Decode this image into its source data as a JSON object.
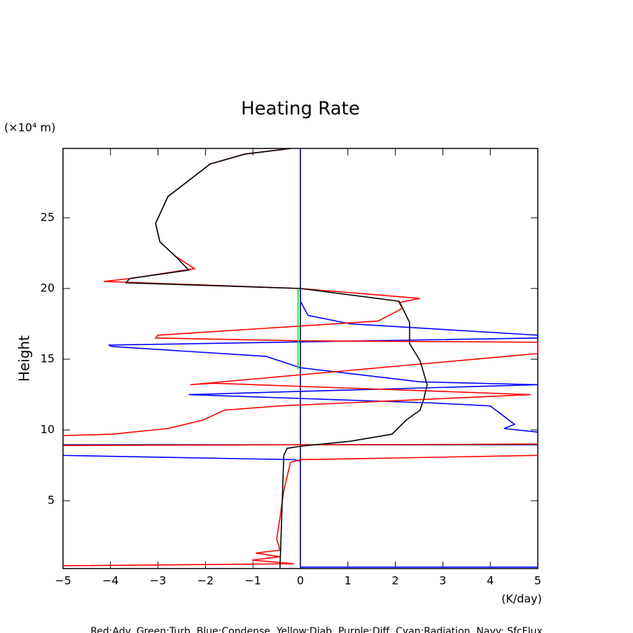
{
  "chart_data": {
    "type": "line",
    "title": "Heating Rate",
    "y_unit": "(×10⁴ m)",
    "y_label": "Height",
    "x_unit": "(K/day)",
    "footer": "Red:Adv.  Green:Turb.  Blue:Condense.  Yellow:Diab.  Purple:Diff.  Cyan:Radiation.  Navy: SfcFlux",
    "xlim": [
      -5,
      5
    ],
    "ylim": [
      0.2,
      29.9
    ],
    "xticks": [
      {
        "value": -5,
        "label": "−5"
      },
      {
        "value": -4,
        "label": "−4"
      },
      {
        "value": -3,
        "label": "−3"
      },
      {
        "value": -2,
        "label": "−2"
      },
      {
        "value": -1,
        "label": "−1"
      },
      0,
      1,
      2,
      3,
      4,
      5
    ],
    "yticks": [
      5,
      10,
      15,
      20,
      25
    ],
    "series": [
      {
        "color": "#000080",
        "x": [
          0,
          0
        ],
        "y": [
          0.2,
          29.9
        ]
      },
      {
        "color": "#000080",
        "x": [
          -5,
          5
        ],
        "y": [
          8.95,
          8.95
        ]
      },
      {
        "color": "#0000ff",
        "x": [
          0,
          5
        ],
        "y": [
          0.3,
          0.3
        ]
      },
      {
        "color": "#0000ff",
        "x": [
          -5,
          -0.13,
          0
        ],
        "y": [
          8.2,
          7.9,
          7.8
        ]
      },
      {
        "color": "#0000ff",
        "x": [
          5,
          4.29,
          4.51,
          4,
          2.82,
          -2.35,
          5,
          2.52,
          0,
          -0.72,
          -3.97,
          -4.04,
          5,
          5,
          1.05,
          0.16,
          0,
          0
        ],
        "y": [
          9.85,
          10.1,
          10.4,
          11.7,
          11.9,
          12.5,
          13.2,
          13.4,
          14.4,
          15.2,
          15.9,
          16.0,
          16.5,
          16.7,
          17.5,
          18.1,
          19.1,
          20
        ]
      },
      {
        "color": "#ff0000",
        "x": [
          -5,
          -0.13,
          -1.02,
          -0.43,
          -0.94,
          -0.43,
          -0.5,
          -0.43,
          -0.35,
          -0.21,
          0,
          5
        ],
        "y": [
          0.4,
          0.54,
          0.8,
          1.04,
          1.3,
          1.5,
          2.3,
          3.8,
          5.7,
          7.7,
          7.9,
          8.2
        ]
      },
      {
        "color": "#ff0000",
        "x": [
          -5,
          5
        ],
        "y": [
          8.9,
          9.0
        ]
      },
      {
        "color": "#ff0000",
        "x": [
          -5,
          -3.97,
          -2.79,
          -2.05,
          -1.6,
          -0.43,
          4.85,
          -1.83,
          -2.32,
          5,
          5,
          0,
          -3.05,
          -3.0,
          1.64,
          2.15,
          2.08,
          2.52,
          0,
          -4.14,
          -3.6,
          -2.23,
          -2.64,
          -2.96,
          -3.05,
          -2.79,
          -1.9,
          -1.17,
          -0.2
        ],
        "y": [
          9.6,
          9.7,
          10.1,
          10.7,
          11.4,
          11.7,
          12.5,
          13.3,
          13.2,
          15.4,
          16.2,
          16.3,
          16.5,
          16.7,
          17.7,
          18.6,
          19.0,
          19.3,
          20,
          20.5,
          20.7,
          21.4,
          22.3,
          23.3,
          24.6,
          26.5,
          28.8,
          29.5,
          29.9
        ]
      },
      {
        "color": "#000000",
        "x": [
          -0.43,
          -0.35,
          -0.28,
          0,
          1.05,
          1.93,
          2.23,
          2.52,
          2.6,
          2.67,
          2.52,
          2.3,
          2.3,
          2.08,
          0,
          -3.67,
          -3.6,
          -2.35,
          -2.64,
          -2.96,
          -3.05,
          -2.79,
          -1.9,
          -1.17,
          -0.2
        ],
        "y": [
          0.2,
          8.2,
          8.7,
          8.85,
          9.2,
          9.7,
          10.7,
          11.4,
          12.2,
          13.2,
          14.9,
          16.1,
          17.6,
          19.1,
          20,
          20.4,
          20.7,
          21.3,
          22.3,
          23.3,
          24.6,
          26.5,
          28.8,
          29.5,
          29.9
        ]
      },
      {
        "color": "#00dd00",
        "x": [
          -0.05,
          -0.05
        ],
        "y": [
          14.3,
          20
        ]
      }
    ]
  }
}
